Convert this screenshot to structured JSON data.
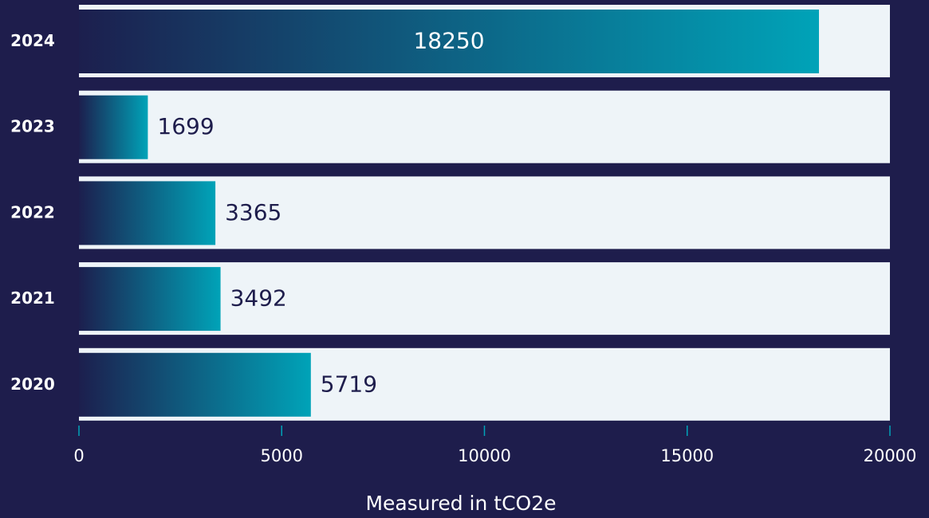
{
  "chart_data": {
    "type": "bar",
    "orientation": "horizontal",
    "categories": [
      "2024",
      "2023",
      "2022",
      "2021",
      "2020"
    ],
    "values": [
      18250,
      1699,
      3365,
      3492,
      5719
    ],
    "color": "#00a3b8",
    "xlim": [
      0,
      20000
    ],
    "xticks": [
      0,
      5000,
      10000,
      15000,
      20000
    ],
    "xlabel": "Measured in tCO2e"
  }
}
